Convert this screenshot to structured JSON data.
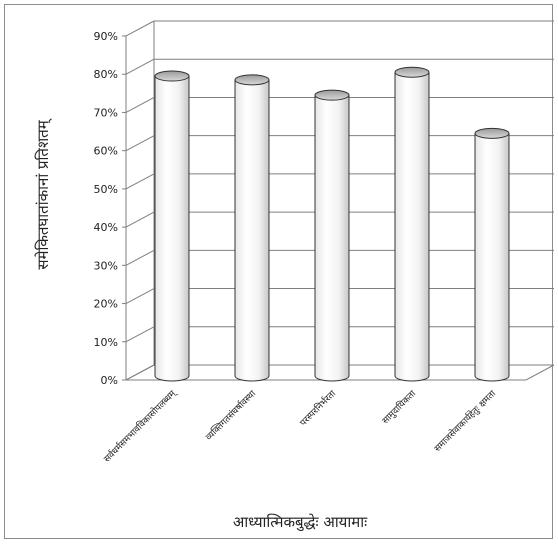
{
  "chart_data": {
    "type": "bar",
    "style": "3d-cylinder",
    "categories": [
      "सर्वधर्मसमभावविकासोपलब्धम्",
      "व्यक्तिगतसंघर्षावस्था",
      "परस्परनिर्भरता",
      "सामुदायिकता",
      "समाजसेवाकार्यहेतुः क्षमता"
    ],
    "values": [
      0.79,
      0.78,
      0.74,
      0.8,
      0.64
    ],
    "y_tick_labels": [
      "0%",
      "10%",
      "20%",
      "30%",
      "40%",
      "50%",
      "60%",
      "70%",
      "80%",
      "90%"
    ],
    "ylim": [
      0,
      0.9
    ],
    "xlabel": "आध्यात्मिकबुद्धेः आयामाः",
    "ylabel": "समेकितघातांकानां प्रतिशतम्",
    "title": "",
    "grid": true,
    "legend": "none",
    "colors": {
      "bar": "#ffffff",
      "outline": "#333333",
      "grid": "#7f7f7f"
    }
  }
}
